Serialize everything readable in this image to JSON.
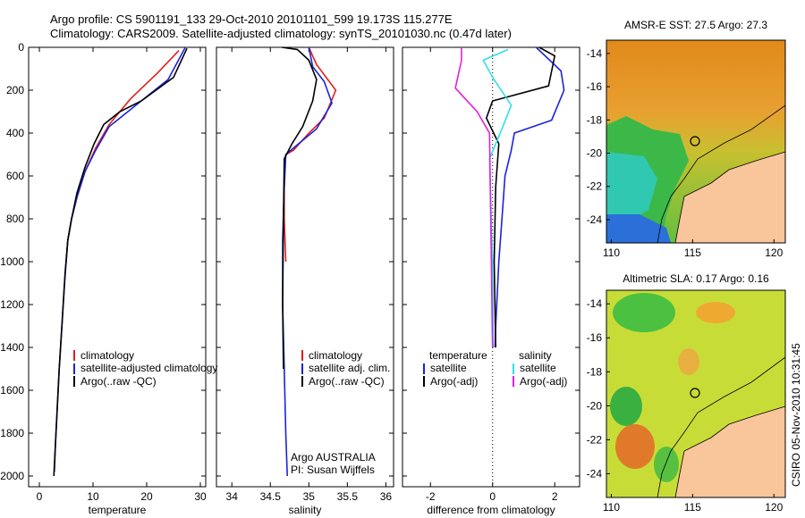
{
  "header": {
    "line1": "Argo profile: CS 5901191_133 29-Oct-2010 20101101_599 19.173S 115.277E",
    "line2": "Climatology: CARS2009. Satellite-adjusted climatology: synTS_20101030.nc (0.47d later)"
  },
  "credit": "CSIRO 05-Nov-2010 10:31:45",
  "colors": {
    "climatology": "#e0201a",
    "satellite": "#1a24d8",
    "argo": "#000000",
    "argo_adj_salinity": "#e020e0",
    "satellite_salinity": "#30e0e8",
    "land": "#f9c59b"
  },
  "chart_data": [
    {
      "type": "line",
      "xlabel": "temperature",
      "ylabel": "",
      "xlim": [
        -2,
        31
      ],
      "ylim": [
        2050,
        0
      ],
      "x_ticks": [
        "0",
        "10",
        "20",
        "30"
      ],
      "x_tick_values": [
        0,
        10,
        20,
        30
      ],
      "y_ticks": [
        "0",
        "200",
        "400",
        "600",
        "800",
        "1000",
        "1200",
        "1400",
        "1600",
        "1800",
        "2000"
      ],
      "legend": [
        "climatology",
        "satellite-adjusted climatology",
        "Argo(..raw -QC)"
      ],
      "series": [
        {
          "name": "climatology",
          "color": "#e0201a",
          "points": [
            [
              26,
              15
            ],
            [
              22,
              120
            ],
            [
              17,
              240
            ],
            [
              13,
              360
            ],
            [
              10.5,
              470
            ],
            [
              8.5,
              580
            ],
            [
              7,
              700
            ],
            [
              6,
              800
            ],
            [
              5.3,
              900
            ],
            [
              5,
              1000
            ]
          ]
        },
        {
          "name": "satellite-adjusted climatology",
          "color": "#1a24d8",
          "points": [
            [
              27.2,
              0
            ],
            [
              24,
              150
            ],
            [
              18,
              270
            ],
            [
              13,
              370
            ],
            [
              10.5,
              480
            ],
            [
              8.5,
              580
            ],
            [
              7,
              700
            ],
            [
              6,
              800
            ],
            [
              5.3,
              900
            ],
            [
              4.7,
              1100
            ],
            [
              4.2,
              1300
            ],
            [
              3.7,
              1500
            ],
            [
              3.3,
              1700
            ],
            [
              3,
              1850
            ],
            [
              2.8,
              1980
            ]
          ]
        },
        {
          "name": "Argo(..raw -QC)",
          "color": "#000000",
          "points": [
            [
              27.5,
              5
            ],
            [
              25,
              140
            ],
            [
              19,
              250
            ],
            [
              15,
              300
            ],
            [
              12,
              360
            ],
            [
              10.2,
              450
            ],
            [
              8.5,
              560
            ],
            [
              7,
              680
            ],
            [
              6,
              800
            ],
            [
              5.3,
              900
            ],
            [
              4.8,
              1050
            ],
            [
              4.2,
              1300
            ],
            [
              3.7,
              1500
            ],
            [
              3.3,
              1700
            ],
            [
              3,
              1850
            ],
            [
              2.7,
              2000
            ]
          ]
        }
      ]
    },
    {
      "type": "line",
      "xlabel": "salinity",
      "ylabel": "",
      "xlim": [
        33.8,
        36.1
      ],
      "ylim": [
        2050,
        0
      ],
      "x_ticks": [
        "34",
        "34.5",
        "35",
        "35.5",
        "36"
      ],
      "x_tick_values": [
        34,
        34.5,
        35,
        35.5,
        36
      ],
      "legend": [
        "climatology",
        "satellite adj. clim.",
        "Argo(..raw -QC)"
      ],
      "annotations": [
        "Argo AUSTRALIA",
        "PI: Susan Wijffels"
      ],
      "series": [
        {
          "name": "climatology",
          "color": "#e0201a",
          "points": [
            [
              35,
              0
            ],
            [
              35.1,
              80
            ],
            [
              35.35,
              200
            ],
            [
              35.2,
              330
            ],
            [
              35,
              400
            ],
            [
              34.8,
              480
            ],
            [
              34.7,
              500
            ],
            [
              34.68,
              650
            ],
            [
              34.68,
              800
            ],
            [
              34.7,
              1000
            ]
          ]
        },
        {
          "name": "satellite adj. clim.",
          "color": "#1a24d8",
          "points": [
            [
              35,
              0
            ],
            [
              35.05,
              90
            ],
            [
              35.2,
              160
            ],
            [
              35.3,
              260
            ],
            [
              35.1,
              380
            ],
            [
              34.8,
              470
            ],
            [
              34.7,
              500
            ],
            [
              34.68,
              650
            ],
            [
              34.66,
              900
            ],
            [
              34.66,
              1200
            ],
            [
              34.68,
              1500
            ],
            [
              34.7,
              1800
            ],
            [
              34.72,
              2000
            ]
          ]
        },
        {
          "name": "Argo(..raw -QC)",
          "color": "#000000",
          "points": [
            [
              34.65,
              0
            ],
            [
              34.85,
              10
            ],
            [
              35.0,
              60
            ],
            [
              35.1,
              150
            ],
            [
              35.05,
              250
            ],
            [
              34.92,
              370
            ],
            [
              34.78,
              450
            ],
            [
              34.68,
              520
            ],
            [
              34.67,
              800
            ],
            [
              34.66,
              1200
            ],
            [
              34.67,
              1500
            ]
          ]
        }
      ]
    },
    {
      "type": "line",
      "xlabel": "difference from climatology",
      "ylabel": "",
      "xlim": [
        -2.9,
        2.8
      ],
      "ylim": [
        2050,
        0
      ],
      "x_ticks": [
        "-2",
        "0",
        "2"
      ],
      "x_tick_values": [
        -2,
        0,
        2
      ],
      "legend_left_title": "temperature",
      "legend_right_title": "salinity",
      "legend": [
        "satellite",
        "Argo(-adj)",
        "satellite",
        "Argo(-adj)"
      ],
      "series": [
        {
          "name": "satellite",
          "color": "#1a24d8",
          "points": [
            [
              1.4,
              0
            ],
            [
              2.2,
              110
            ],
            [
              2.3,
              200
            ],
            [
              1.9,
              340
            ],
            [
              0.7,
              400
            ],
            [
              0.6,
              480
            ],
            [
              0.4,
              600
            ],
            [
              0.3,
              800
            ],
            [
              0.2,
              1000
            ],
            [
              0.1,
              1300
            ],
            [
              0.08,
              1400
            ]
          ]
        },
        {
          "name": "Argo(-adj)",
          "color": "#000000",
          "points": [
            [
              1.5,
              0
            ],
            [
              2,
              40
            ],
            [
              1.8,
              180
            ],
            [
              0,
              250
            ],
            [
              -0.2,
              330
            ],
            [
              0.2,
              450
            ],
            [
              0.1,
              650
            ],
            [
              0.05,
              1000
            ],
            [
              0.1,
              1400
            ]
          ]
        },
        {
          "name": "satellite",
          "color": "#30e0e8",
          "points": [
            [
              0.5,
              10
            ],
            [
              -0.3,
              60
            ],
            [
              0,
              140
            ],
            [
              0.6,
              270
            ],
            [
              0.3,
              380
            ],
            [
              -0.1,
              520
            ],
            [
              0,
              1000
            ],
            [
              0.02,
              1400
            ]
          ]
        },
        {
          "name": "Argo(-adj)",
          "color": "#e020e0",
          "points": [
            [
              -1,
              0
            ],
            [
              -1,
              60
            ],
            [
              -1.2,
              190
            ],
            [
              -0.5,
              300
            ],
            [
              -0.1,
              400
            ],
            [
              0,
              1400
            ]
          ]
        }
      ]
    }
  ],
  "maps": [
    {
      "title": "AMSR-E SST: 27.5 Argo: 27.3",
      "lat_ticks": [
        "-14",
        "-16",
        "-18",
        "-20",
        "-22",
        "-24"
      ],
      "lon_ticks": [
        "110",
        "115",
        "120"
      ]
    },
    {
      "title": "Altimetric SLA: 0.17 Argo: 0.16",
      "lat_ticks": [
        "-14",
        "-16",
        "-18",
        "-20",
        "-22",
        "-24"
      ],
      "lon_ticks": [
        "110",
        "115",
        "120"
      ]
    }
  ]
}
